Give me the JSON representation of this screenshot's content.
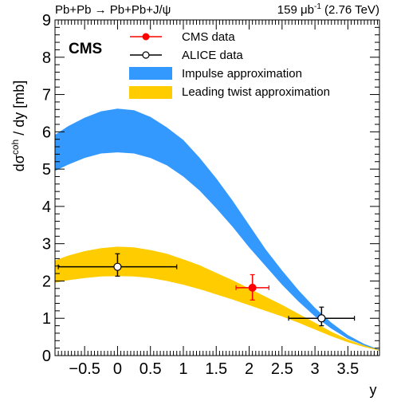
{
  "header": {
    "left": "Pb+Pb → Pb+Pb+J/ψ",
    "right_pre": "159 μb",
    "right_sup": "-1",
    "right_post": " (2.76 TeV)"
  },
  "experiment_label": "CMS",
  "chart_data": {
    "type": "scatter",
    "title": "",
    "xlabel": "y",
    "ylabel_pre": "dσ",
    "ylabel_sup": "coh",
    "ylabel_post": " / dy [mb]",
    "xlim": [
      -0.95,
      3.98
    ],
    "ylim": [
      0,
      9
    ],
    "x_ticks": [
      {
        "value": -0.5,
        "label": "−0.5"
      },
      {
        "value": 0,
        "label": "0"
      },
      {
        "value": 0.5,
        "label": "0.5"
      },
      {
        "value": 1,
        "label": "1"
      },
      {
        "value": 1.5,
        "label": "1.5"
      },
      {
        "value": 2,
        "label": "2"
      },
      {
        "value": 2.5,
        "label": "2.5"
      },
      {
        "value": 3,
        "label": "3"
      },
      {
        "value": 3.5,
        "label": "3.5"
      }
    ],
    "y_ticks": [
      {
        "value": 0,
        "label": "0"
      },
      {
        "value": 1,
        "label": "1"
      },
      {
        "value": 2,
        "label": "2"
      },
      {
        "value": 3,
        "label": "3"
      },
      {
        "value": 4,
        "label": "4"
      },
      {
        "value": 5,
        "label": "5"
      },
      {
        "value": 6,
        "label": "6"
      },
      {
        "value": 7,
        "label": "7"
      },
      {
        "value": 8,
        "label": "8"
      },
      {
        "value": 9,
        "label": "9"
      }
    ],
    "grid": false,
    "legend_position": "top-right",
    "series": [
      {
        "name": "CMS data",
        "kind": "points",
        "color": "#ff0000",
        "marker": "filled-circle",
        "points": [
          {
            "x": 2.05,
            "y": 1.82,
            "xerr": [
              0.25,
              0.25
            ],
            "yerr": [
              0.33,
              0.35
            ]
          }
        ]
      },
      {
        "name": "ALICE data",
        "kind": "points",
        "color": "#000000",
        "marker": "open-circle",
        "points": [
          {
            "x": 0.0,
            "y": 2.38,
            "xerr": [
              0.9,
              0.9
            ],
            "yerr": [
              0.25,
              0.35
            ]
          },
          {
            "x": 3.1,
            "y": 1.0,
            "xerr": [
              0.5,
              0.5
            ],
            "yerr": [
              0.2,
              0.3
            ]
          }
        ]
      },
      {
        "name": "Impulse approximation",
        "kind": "band",
        "color": "#3399ff",
        "points": [
          {
            "x": -0.95,
            "low": 4.95,
            "high": 5.92
          },
          {
            "x": -0.75,
            "low": 5.12,
            "high": 6.15
          },
          {
            "x": -0.5,
            "low": 5.3,
            "high": 6.38
          },
          {
            "x": -0.25,
            "low": 5.42,
            "high": 6.55
          },
          {
            "x": 0.0,
            "low": 5.45,
            "high": 6.62
          },
          {
            "x": 0.25,
            "low": 5.42,
            "high": 6.58
          },
          {
            "x": 0.5,
            "low": 5.3,
            "high": 6.4
          },
          {
            "x": 0.75,
            "low": 5.1,
            "high": 6.12
          },
          {
            "x": 1.0,
            "low": 4.8,
            "high": 5.78
          },
          {
            "x": 1.25,
            "low": 4.42,
            "high": 5.3
          },
          {
            "x": 1.5,
            "low": 3.95,
            "high": 4.75
          },
          {
            "x": 1.75,
            "low": 3.45,
            "high": 4.15
          },
          {
            "x": 2.0,
            "low": 2.9,
            "high": 3.5
          },
          {
            "x": 2.25,
            "low": 2.4,
            "high": 2.85
          },
          {
            "x": 2.5,
            "low": 1.9,
            "high": 2.28
          },
          {
            "x": 2.75,
            "low": 1.45,
            "high": 1.75
          },
          {
            "x": 3.0,
            "low": 1.05,
            "high": 1.28
          },
          {
            "x": 3.25,
            "low": 0.72,
            "high": 0.88
          },
          {
            "x": 3.5,
            "low": 0.45,
            "high": 0.55
          },
          {
            "x": 3.75,
            "low": 0.27,
            "high": 0.31
          },
          {
            "x": 3.98,
            "low": 0.14,
            "high": 0.16
          }
        ]
      },
      {
        "name": "Leading twist approximation",
        "kind": "band",
        "color": "#ffcc00",
        "points": [
          {
            "x": -0.95,
            "low": 1.95,
            "high": 2.55
          },
          {
            "x": -0.75,
            "low": 2.02,
            "high": 2.68
          },
          {
            "x": -0.5,
            "low": 2.08,
            "high": 2.8
          },
          {
            "x": -0.25,
            "low": 2.12,
            "high": 2.88
          },
          {
            "x": 0.0,
            "low": 2.13,
            "high": 2.92
          },
          {
            "x": 0.25,
            "low": 2.12,
            "high": 2.9
          },
          {
            "x": 0.5,
            "low": 2.08,
            "high": 2.83
          },
          {
            "x": 0.75,
            "low": 2.0,
            "high": 2.73
          },
          {
            "x": 1.0,
            "low": 1.9,
            "high": 2.58
          },
          {
            "x": 1.25,
            "low": 1.78,
            "high": 2.42
          },
          {
            "x": 1.5,
            "low": 1.64,
            "high": 2.22
          },
          {
            "x": 1.75,
            "low": 1.5,
            "high": 2.02
          },
          {
            "x": 2.0,
            "low": 1.35,
            "high": 1.8
          },
          {
            "x": 2.25,
            "low": 1.2,
            "high": 1.58
          },
          {
            "x": 2.5,
            "low": 1.05,
            "high": 1.36
          },
          {
            "x": 2.75,
            "low": 0.88,
            "high": 1.12
          },
          {
            "x": 3.0,
            "low": 0.7,
            "high": 0.88
          },
          {
            "x": 3.25,
            "low": 0.52,
            "high": 0.64
          },
          {
            "x": 3.5,
            "low": 0.36,
            "high": 0.43
          },
          {
            "x": 3.75,
            "low": 0.23,
            "high": 0.27
          },
          {
            "x": 3.98,
            "low": 0.13,
            "high": 0.15
          }
        ]
      }
    ]
  }
}
